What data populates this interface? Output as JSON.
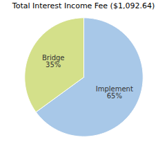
{
  "chart_data": {
    "type": "pie",
    "title": "Total Interest Income Fee ($1,092.64)",
    "categories": [
      "Implement",
      "Bridge"
    ],
    "values": [
      65,
      35
    ],
    "colors": [
      "#a8c8e8",
      "#d4e08a"
    ],
    "data_labels": true,
    "value_labels": [
      "65%",
      "35%"
    ]
  }
}
